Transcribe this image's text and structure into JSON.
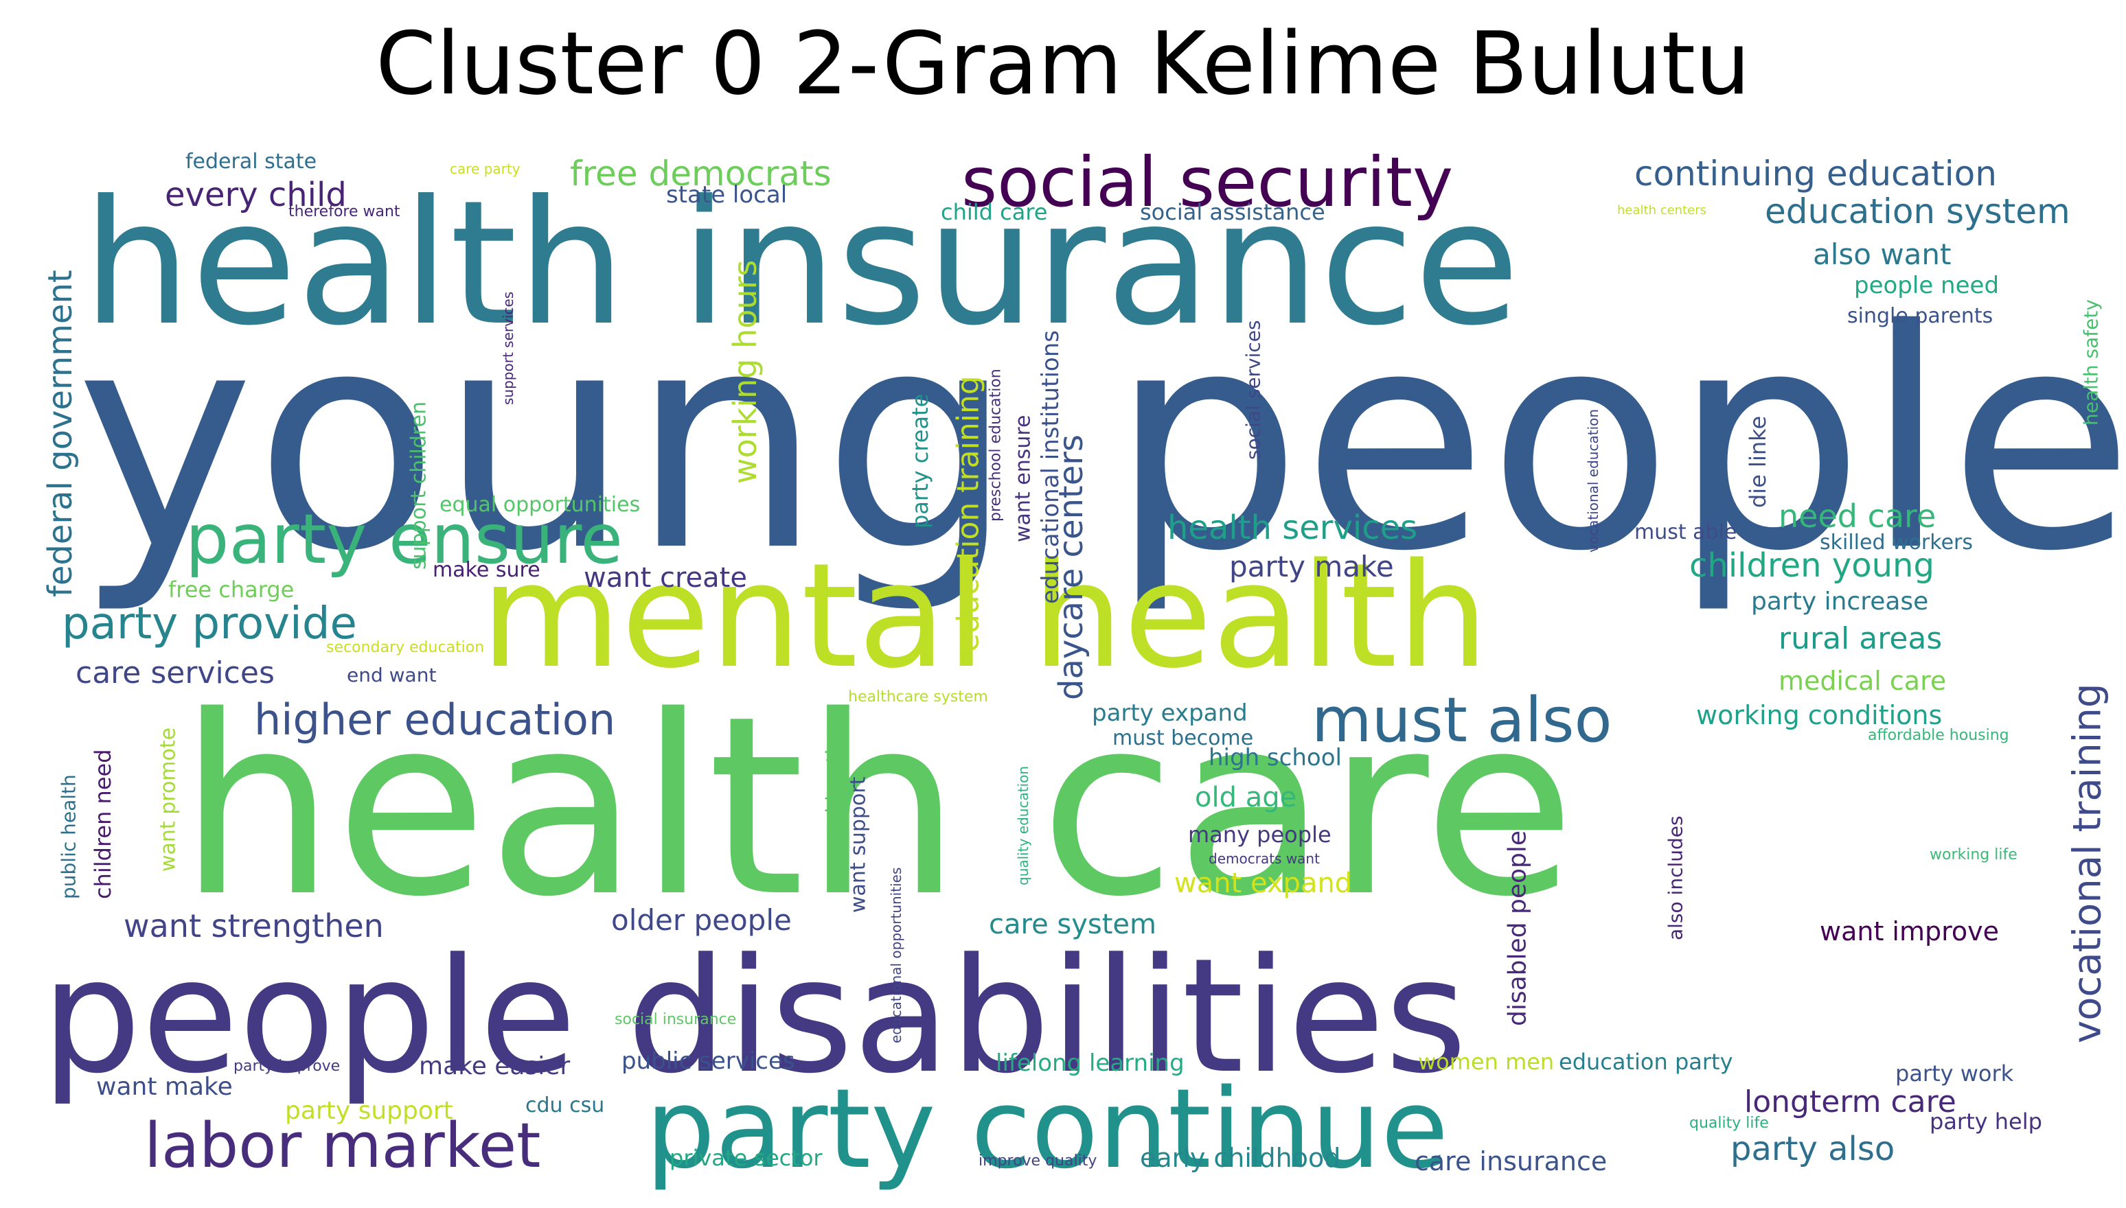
{
  "title": "Cluster 0 2-Gram Kelime Bulutu",
  "words": [
    {
      "text": "young people",
      "color": "#365c8d"
    },
    {
      "text": "health care",
      "color": "#5ec962"
    },
    {
      "text": "health insurance",
      "color": "#2f7b8f"
    },
    {
      "text": "mental health",
      "color": "#bddf26"
    },
    {
      "text": "people disabilities",
      "color": "#443983"
    },
    {
      "text": "party continue",
      "color": "#21918c"
    },
    {
      "text": "social security",
      "color": "#440154"
    },
    {
      "text": "party ensure",
      "color": "#3ab37a"
    },
    {
      "text": "labor market",
      "color": "#472d7b"
    },
    {
      "text": "must also",
      "color": "#31688e"
    },
    {
      "text": "party provide",
      "color": "#25848e"
    },
    {
      "text": "higher education",
      "color": "#3b528b"
    },
    {
      "text": "continuing education",
      "color": "#355f8d"
    },
    {
      "text": "education system",
      "color": "#2d708e"
    },
    {
      "text": "vocational training",
      "color": "#3e4a89"
    },
    {
      "text": "federal government",
      "color": "#2c728e"
    },
    {
      "text": "daycare centers",
      "color": "#3a548c"
    },
    {
      "text": "every child",
      "color": "#482475"
    },
    {
      "text": "free democrats",
      "color": "#6ccd5a"
    },
    {
      "text": "working hours",
      "color": "#addc30"
    },
    {
      "text": "education training",
      "color": "#c2df23"
    },
    {
      "text": "health services",
      "color": "#1f9e89"
    },
    {
      "text": "children young",
      "color": "#22a785"
    },
    {
      "text": "care services",
      "color": "#3f4788"
    },
    {
      "text": "want strengthen",
      "color": "#414487"
    },
    {
      "text": "older people",
      "color": "#3f4889"
    },
    {
      "text": "longterm care",
      "color": "#482878"
    },
    {
      "text": "want create",
      "color": "#453781"
    },
    {
      "text": "party make",
      "color": "#404588"
    },
    {
      "text": "also want",
      "color": "#2a788e"
    },
    {
      "text": "need care",
      "color": "#35b779"
    },
    {
      "text": "rural areas",
      "color": "#1e9c89"
    },
    {
      "text": "party also",
      "color": "#2e6f8e"
    },
    {
      "text": "care insurance",
      "color": "#3b528b"
    },
    {
      "text": "early childhood",
      "color": "#24878e"
    },
    {
      "text": "working conditions",
      "color": "#1fa088"
    },
    {
      "text": "care system",
      "color": "#228b8d"
    },
    {
      "text": "old age",
      "color": "#35b779"
    },
    {
      "text": "want expand",
      "color": "#d2e21b"
    },
    {
      "text": "disabled people",
      "color": "#482979"
    },
    {
      "text": "party expand",
      "color": "#287c8e"
    },
    {
      "text": "make easier",
      "color": "#443a83"
    },
    {
      "text": "party support",
      "color": "#c0df25"
    },
    {
      "text": "want make",
      "color": "#3d4e8a"
    },
    {
      "text": "education party",
      "color": "#277f8e"
    },
    {
      "text": "medical care",
      "color": "#7ad151"
    },
    {
      "text": "party increase",
      "color": "#297a8e"
    },
    {
      "text": "state local",
      "color": "#3a548c"
    },
    {
      "text": "child care",
      "color": "#20a386"
    },
    {
      "text": "social assistance",
      "color": "#33638d"
    },
    {
      "text": "people need",
      "color": "#22a884"
    },
    {
      "text": "single parents",
      "color": "#3a538b"
    },
    {
      "text": "federal state",
      "color": "#2e6e8e"
    },
    {
      "text": "health safety",
      "color": "#48c16e"
    },
    {
      "text": "die linke",
      "color": "#3c4f8a"
    },
    {
      "text": "must able",
      "color": "#3e4c8a"
    },
    {
      "text": "skilled workers",
      "color": "#2e6e8e"
    },
    {
      "text": "want ensure",
      "color": "#46337f"
    },
    {
      "text": "educational institutions",
      "color": "#3b518b"
    },
    {
      "text": "party create",
      "color": "#21918c"
    },
    {
      "text": "support children",
      "color": "#4ac16d"
    },
    {
      "text": "social services",
      "color": "#3f4788"
    },
    {
      "text": "equal opportunities",
      "color": "#54c568"
    },
    {
      "text": "make sure",
      "color": "#482173"
    },
    {
      "text": "free charge",
      "color": "#6ece58"
    },
    {
      "text": "end want",
      "color": "#3e4989"
    },
    {
      "text": "public health",
      "color": "#2d718e"
    },
    {
      "text": "children need",
      "color": "#481a6c"
    },
    {
      "text": "want promote",
      "color": "#a5db36"
    },
    {
      "text": "working time",
      "color": "#5ec962"
    },
    {
      "text": "want support",
      "color": "#3d4d8a"
    },
    {
      "text": "high school",
      "color": "#2b748e"
    },
    {
      "text": "many people",
      "color": "#453882"
    },
    {
      "text": "must become",
      "color": "#2d708e"
    },
    {
      "text": "also includes",
      "color": "#482576"
    },
    {
      "text": "want improve",
      "color": "#440154"
    },
    {
      "text": "party work",
      "color": "#3b528b"
    },
    {
      "text": "party help",
      "color": "#46327e"
    },
    {
      "text": "lifelong learning",
      "color": "#25ab82"
    },
    {
      "text": "women men",
      "color": "#bade28"
    },
    {
      "text": "public services",
      "color": "#3b518b"
    },
    {
      "text": "cdu csu",
      "color": "#2a778e"
    },
    {
      "text": "private sector",
      "color": "#22a884"
    },
    {
      "text": "improve quality",
      "color": "#414487"
    },
    {
      "text": "quality life",
      "color": "#2ab07f"
    },
    {
      "text": "working life",
      "color": "#3aba76"
    },
    {
      "text": "affordable housing",
      "color": "#35b779"
    },
    {
      "text": "social insurance",
      "color": "#5ec962"
    },
    {
      "text": "party improve",
      "color": "#443983"
    },
    {
      "text": "democrats want",
      "color": "#453781"
    },
    {
      "text": "educational opportunities",
      "color": "#414487"
    },
    {
      "text": "quality education",
      "color": "#2db27d"
    },
    {
      "text": "healthcare system",
      "color": "#b5de2b"
    },
    {
      "text": "secondary education",
      "color": "#c8e020"
    },
    {
      "text": "preschool education",
      "color": "#472f7d"
    },
    {
      "text": "vocational education",
      "color": "#3f4788"
    },
    {
      "text": "support services",
      "color": "#482677"
    },
    {
      "text": "therefore want",
      "color": "#482677"
    },
    {
      "text": "care party",
      "color": "#c8e020"
    },
    {
      "text": "health centers",
      "color": "#c2df23"
    }
  ]
}
